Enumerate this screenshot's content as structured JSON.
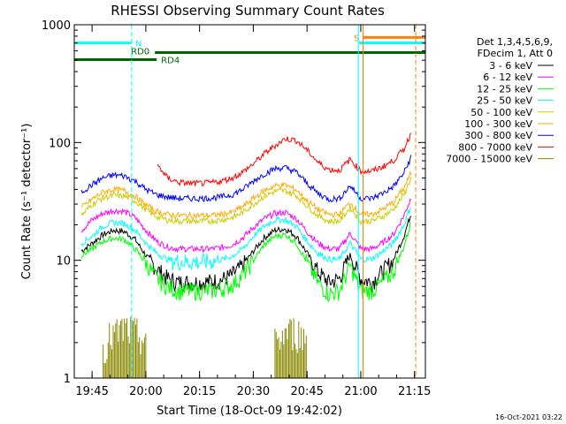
{
  "chart_data": {
    "type": "line",
    "title": "RHESSI Observing Summary Count Rates",
    "xlabel": "Start Time (18-Oct-09 19:42:02)",
    "ylabel": "Count Rate (s⁻¹ detector⁻¹)",
    "yscale": "log",
    "ylim": [
      1,
      1000
    ],
    "xlim_minutes": [
      -2.0,
      96.0
    ],
    "x_tick_labels": [
      "19:45",
      "20:00",
      "20:15",
      "20:30",
      "20:45",
      "21:00",
      "21:15"
    ],
    "y_tick_labels": [
      "1",
      "10",
      "100",
      "1000"
    ],
    "legend_header": [
      "Det 1,3,4,5,6,9,",
      "FDecim 1, Att 0"
    ],
    "legend_position": "right",
    "grid": false,
    "x": [
      0,
      3,
      6,
      9,
      12,
      15,
      18,
      21,
      24,
      27,
      30,
      33,
      36,
      39,
      42,
      45,
      48,
      51,
      54,
      57,
      60,
      63,
      66,
      69,
      72,
      75,
      78,
      81,
      84,
      87,
      90,
      92
    ],
    "series": [
      {
        "name": "3 - 6 keV",
        "color": "#000000",
        "values": [
          12,
          14,
          16.5,
          18,
          17.5,
          15,
          11,
          8.5,
          7,
          6.5,
          6.5,
          6.5,
          6.6,
          6.8,
          7.5,
          9,
          12,
          15.5,
          18,
          18.5,
          16,
          11.5,
          8,
          6.5,
          7,
          11,
          7,
          6.5,
          8,
          10,
          16,
          25
        ]
      },
      {
        "name": "6 - 12 keV",
        "color": "#ff00ff",
        "values": [
          18,
          22,
          25,
          26.5,
          26,
          23,
          18,
          14.5,
          13,
          12.5,
          12.5,
          12.5,
          12.5,
          12.8,
          13.5,
          15.5,
          19,
          22.5,
          25,
          25.5,
          22.5,
          17.5,
          14,
          12.5,
          12.5,
          17,
          12.5,
          12.5,
          14,
          16.5,
          24,
          34
        ]
      },
      {
        "name": "12 - 25 keV",
        "color": "#00ff00",
        "values": [
          11,
          12.5,
          14.5,
          15.5,
          15,
          12.5,
          9.5,
          7,
          6,
          5.5,
          5.5,
          5.5,
          5.5,
          5.7,
          6.2,
          7.5,
          10,
          13.5,
          16,
          16.5,
          14,
          9.5,
          6.5,
          5.2,
          5.5,
          9,
          5.5,
          5.5,
          6.5,
          8,
          13,
          21
        ]
      },
      {
        "name": "25 - 50 keV",
        "color": "#00ffff",
        "values": [
          14,
          16,
          19.5,
          21,
          20.5,
          18,
          14,
          11.5,
          10.2,
          9.8,
          9.7,
          9.7,
          9.8,
          10.1,
          10.8,
          12.5,
          16,
          19.5,
          22,
          22,
          19.5,
          14.5,
          11.5,
          10.2,
          10.2,
          14,
          10.2,
          10.3,
          11.8,
          14,
          20,
          29
        ]
      },
      {
        "name": "50 - 100 keV",
        "color": "#cccc00",
        "values": [
          24,
          30,
          34,
          35.5,
          35,
          32,
          27,
          23.5,
          22,
          21.5,
          21.5,
          21.5,
          21.6,
          22,
          23,
          25.5,
          30,
          35,
          38.5,
          39,
          35.5,
          29,
          24,
          21.5,
          21.5,
          28,
          21.5,
          21.5,
          23.5,
          27,
          36,
          50
        ]
      },
      {
        "name": "100 - 300 keV",
        "color": "#ffaa00",
        "values": [
          28,
          33,
          38,
          40,
          39,
          35,
          29.5,
          26,
          24.5,
          24,
          24,
          24,
          24,
          24.5,
          25.5,
          28.5,
          33.5,
          39,
          43,
          43.5,
          39.5,
          32,
          27,
          24.5,
          24.5,
          31,
          24.5,
          24.5,
          27,
          31,
          41,
          55
        ]
      },
      {
        "name": "300 - 800 keV",
        "color": "#0000ff",
        "values": [
          38,
          44,
          50,
          53,
          52,
          47,
          40,
          36,
          34.5,
          33.5,
          33.5,
          33.5,
          33.8,
          34.5,
          36,
          40,
          47,
          54,
          60,
          61,
          56,
          45,
          37,
          33,
          33.5,
          43,
          33.5,
          33.5,
          37,
          42,
          55,
          75
        ]
      },
      {
        "name": "800 - 7000 keV",
        "color": "#ff0000",
        "values": [
          null,
          null,
          null,
          null,
          null,
          null,
          null,
          66,
          50,
          46,
          45,
          45,
          45.5,
          47,
          50,
          56,
          66,
          80,
          94,
          108,
          104,
          86,
          68,
          59,
          58,
          72,
          57,
          57,
          62,
          70,
          88,
          120
        ]
      },
      {
        "name": "7000 - 15000 keV",
        "color": "#888800",
        "values": [
          null,
          null,
          1.8,
          2.1,
          2.4,
          2.2,
          1.9,
          null,
          null,
          null,
          null,
          null,
          null,
          null,
          null,
          null,
          null,
          null,
          1.8,
          2.2,
          2.3,
          1.9,
          null,
          null,
          null,
          null,
          null,
          null,
          null,
          null,
          null,
          null
        ]
      }
    ],
    "states": [
      {
        "label": "N",
        "color": "#00ffff",
        "level": 700,
        "start": -2.0,
        "end": 14.0
      },
      {
        "label": "RD0",
        "color": "#006600",
        "level": 580,
        "start": 20.5,
        "end": 96.0
      },
      {
        "label": "RD4",
        "color": "#006600",
        "level": 505,
        "start": -2.0,
        "end": 21.0
      },
      {
        "label": "S",
        "color": "#ff7f00",
        "level": 780,
        "start": 78.5,
        "end": 96.0
      },
      {
        "label": "",
        "color": "#00ffff",
        "level": 700,
        "start": 77.5,
        "end": 96.0
      }
    ],
    "markers": [
      {
        "x": -2.0,
        "color": "#00ffff",
        "style": "solid"
      },
      {
        "x": 14.0,
        "color": "#00ffff",
        "style": "dashed"
      },
      {
        "x": 77.3,
        "color": "#00ffff",
        "style": "solid"
      },
      {
        "x": 78.6,
        "color": "#ff7f00",
        "style": "solid"
      },
      {
        "x": 93.3,
        "color": "#ff7f00",
        "style": "dashed"
      }
    ]
  },
  "footer_date": "16-Oct-2021 03:22"
}
